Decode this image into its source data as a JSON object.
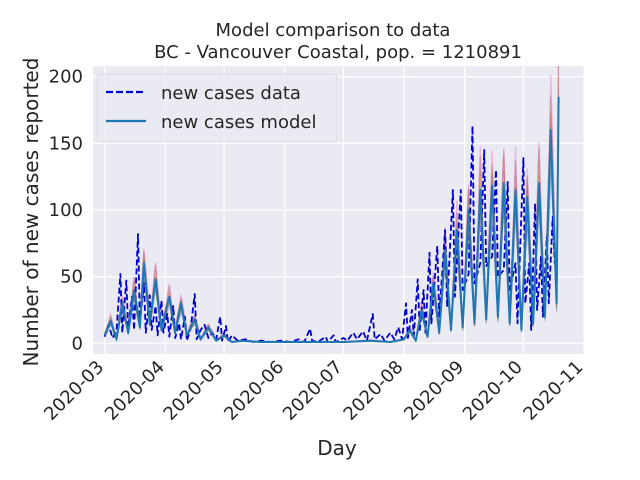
{
  "chart_data": {
    "type": "line",
    "title_line1": "Model comparison to data",
    "title_line2": "BC - Vancouver Coastal, pop. = 1210891",
    "xlabel": "Day",
    "ylabel": "Number of new cases reported",
    "x_axis_type": "date",
    "xlim": [
      "2020-02-24",
      "2020-11-01"
    ],
    "ylim": [
      -8,
      208
    ],
    "x_ticks": [
      "2020-03-01",
      "2020-04-01",
      "2020-05-01",
      "2020-06-01",
      "2020-07-01",
      "2020-08-01",
      "2020-09-01",
      "2020-10-01",
      "2020-11-01"
    ],
    "x_tick_labels": [
      "2020-03",
      "2020-04",
      "2020-05",
      "2020-06",
      "2020-07",
      "2020-08",
      "2020-09",
      "2020-10",
      "2020-11"
    ],
    "y_ticks": [
      0,
      50,
      100,
      150,
      200
    ],
    "y_tick_labels": [
      "0",
      "50",
      "100",
      "150",
      "200"
    ],
    "grid": true,
    "legend_position": "top-left",
    "background_color": "#eaeaf2",
    "series": [
      {
        "name": "new cases data",
        "style": "dashed",
        "color": "#0000cc",
        "data": [
          [
            "2020-03-01",
            5
          ],
          [
            "2020-03-03",
            14
          ],
          [
            "2020-03-05",
            4
          ],
          [
            "2020-03-07",
            9
          ],
          [
            "2020-03-09",
            52
          ],
          [
            "2020-03-10",
            8
          ],
          [
            "2020-03-12",
            47
          ],
          [
            "2020-03-13",
            12
          ],
          [
            "2020-03-15",
            35
          ],
          [
            "2020-03-16",
            10
          ],
          [
            "2020-03-18",
            82
          ],
          [
            "2020-03-19",
            16
          ],
          [
            "2020-03-21",
            45
          ],
          [
            "2020-03-22",
            8
          ],
          [
            "2020-03-24",
            36
          ],
          [
            "2020-03-25",
            10
          ],
          [
            "2020-03-27",
            28
          ],
          [
            "2020-03-28",
            6
          ],
          [
            "2020-03-30",
            32
          ],
          [
            "2020-03-31",
            8
          ],
          [
            "2020-04-02",
            22
          ],
          [
            "2020-04-03",
            5
          ],
          [
            "2020-04-05",
            28
          ],
          [
            "2020-04-06",
            4
          ],
          [
            "2020-04-08",
            15
          ],
          [
            "2020-04-09",
            3
          ],
          [
            "2020-04-11",
            20
          ],
          [
            "2020-04-12",
            2
          ],
          [
            "2020-04-14",
            12
          ],
          [
            "2020-04-16",
            37
          ],
          [
            "2020-04-17",
            3
          ],
          [
            "2020-04-19",
            10
          ],
          [
            "2020-04-21",
            14
          ],
          [
            "2020-04-23",
            4
          ],
          [
            "2020-04-25",
            8
          ],
          [
            "2020-04-27",
            3
          ],
          [
            "2020-04-29",
            20
          ],
          [
            "2020-04-30",
            2
          ],
          [
            "2020-05-02",
            13
          ],
          [
            "2020-05-03",
            1
          ],
          [
            "2020-05-05",
            6
          ],
          [
            "2020-05-08",
            2
          ],
          [
            "2020-05-12",
            3
          ],
          [
            "2020-05-16",
            1
          ],
          [
            "2020-05-20",
            2
          ],
          [
            "2020-05-25",
            1
          ],
          [
            "2020-05-30",
            2
          ],
          [
            "2020-06-04",
            1
          ],
          [
            "2020-06-08",
            3
          ],
          [
            "2020-06-11",
            1
          ],
          [
            "2020-06-14",
            11
          ],
          [
            "2020-06-15",
            2
          ],
          [
            "2020-06-18",
            1
          ],
          [
            "2020-06-22",
            5
          ],
          [
            "2020-06-23",
            1
          ],
          [
            "2020-06-26",
            6
          ],
          [
            "2020-06-27",
            1
          ],
          [
            "2020-07-01",
            4
          ],
          [
            "2020-07-03",
            2
          ],
          [
            "2020-07-06",
            8
          ],
          [
            "2020-07-08",
            3
          ],
          [
            "2020-07-11",
            9
          ],
          [
            "2020-07-13",
            2
          ],
          [
            "2020-07-16",
            22
          ],
          [
            "2020-07-17",
            3
          ],
          [
            "2020-07-20",
            7
          ],
          [
            "2020-07-22",
            2
          ],
          [
            "2020-07-25",
            8
          ],
          [
            "2020-07-27",
            3
          ],
          [
            "2020-07-29",
            12
          ],
          [
            "2020-07-31",
            3
          ],
          [
            "2020-08-02",
            30
          ],
          [
            "2020-08-03",
            4
          ],
          [
            "2020-08-05",
            25
          ],
          [
            "2020-08-06",
            6
          ],
          [
            "2020-08-08",
            48
          ],
          [
            "2020-08-09",
            10
          ],
          [
            "2020-08-11",
            40
          ],
          [
            "2020-08-12",
            8
          ],
          [
            "2020-08-14",
            68
          ],
          [
            "2020-08-15",
            15
          ],
          [
            "2020-08-18",
            73
          ],
          [
            "2020-08-19",
            20
          ],
          [
            "2020-08-22",
            85
          ],
          [
            "2020-08-23",
            28
          ],
          [
            "2020-08-26",
            115
          ],
          [
            "2020-08-27",
            35
          ],
          [
            "2020-08-30",
            115
          ],
          [
            "2020-08-31",
            40
          ],
          [
            "2020-09-03",
            52
          ],
          [
            "2020-09-05",
            163
          ],
          [
            "2020-09-06",
            45
          ],
          [
            "2020-09-09",
            60
          ],
          [
            "2020-09-11",
            145
          ],
          [
            "2020-09-12",
            58
          ],
          [
            "2020-09-15",
            65
          ],
          [
            "2020-09-17",
            130
          ],
          [
            "2020-09-18",
            50
          ],
          [
            "2020-09-21",
            55
          ],
          [
            "2020-09-23",
            121
          ],
          [
            "2020-09-24",
            40
          ],
          [
            "2020-09-27",
            60
          ],
          [
            "2020-09-28",
            15
          ],
          [
            "2020-10-01",
            139
          ],
          [
            "2020-10-02",
            30
          ],
          [
            "2020-10-04",
            60
          ],
          [
            "2020-10-05",
            10
          ],
          [
            "2020-10-07",
            105
          ],
          [
            "2020-10-08",
            25
          ],
          [
            "2020-10-10",
            65
          ],
          [
            "2020-10-11",
            20
          ],
          [
            "2020-10-13",
            80
          ],
          [
            "2020-10-14",
            30
          ],
          [
            "2020-10-16",
            95
          ],
          [
            "2020-10-17",
            60
          ]
        ]
      },
      {
        "name": "new cases model",
        "style": "solid",
        "color": "#1f77b4",
        "data": [
          [
            "2020-03-01",
            6
          ],
          [
            "2020-03-04",
            17
          ],
          [
            "2020-03-07",
            3
          ],
          [
            "2020-03-10",
            30
          ],
          [
            "2020-03-13",
            8
          ],
          [
            "2020-03-16",
            40
          ],
          [
            "2020-03-19",
            12
          ],
          [
            "2020-03-21",
            60
          ],
          [
            "2020-03-24",
            15
          ],
          [
            "2020-03-27",
            48
          ],
          [
            "2020-03-30",
            10
          ],
          [
            "2020-04-03",
            35
          ],
          [
            "2020-04-06",
            8
          ],
          [
            "2020-04-09",
            30
          ],
          [
            "2020-04-12",
            6
          ],
          [
            "2020-04-16",
            18
          ],
          [
            "2020-04-19",
            3
          ],
          [
            "2020-04-23",
            12
          ],
          [
            "2020-04-27",
            2
          ],
          [
            "2020-05-01",
            6
          ],
          [
            "2020-05-05",
            1
          ],
          [
            "2020-05-10",
            2
          ],
          [
            "2020-05-20",
            1
          ],
          [
            "2020-06-01",
            1
          ],
          [
            "2020-06-15",
            1
          ],
          [
            "2020-07-01",
            1
          ],
          [
            "2020-07-15",
            2
          ],
          [
            "2020-07-25",
            1
          ],
          [
            "2020-08-01",
            3
          ],
          [
            "2020-08-04",
            10
          ],
          [
            "2020-08-07",
            2
          ],
          [
            "2020-08-10",
            25
          ],
          [
            "2020-08-13",
            5
          ],
          [
            "2020-08-16",
            45
          ],
          [
            "2020-08-19",
            8
          ],
          [
            "2020-08-22",
            70
          ],
          [
            "2020-08-25",
            10
          ],
          [
            "2020-08-28",
            85
          ],
          [
            "2020-08-31",
            12
          ],
          [
            "2020-09-03",
            100
          ],
          [
            "2020-09-06",
            15
          ],
          [
            "2020-09-09",
            115
          ],
          [
            "2020-09-12",
            18
          ],
          [
            "2020-09-15",
            118
          ],
          [
            "2020-09-18",
            20
          ],
          [
            "2020-09-21",
            120
          ],
          [
            "2020-09-24",
            15
          ],
          [
            "2020-09-27",
            115
          ],
          [
            "2020-09-30",
            10
          ],
          [
            "2020-10-03",
            110
          ],
          [
            "2020-10-06",
            15
          ],
          [
            "2020-10-09",
            120
          ],
          [
            "2020-10-12",
            20
          ],
          [
            "2020-10-15",
            160
          ],
          [
            "2020-10-18",
            30
          ],
          [
            "2020-10-19",
            185
          ]
        ]
      }
    ]
  }
}
